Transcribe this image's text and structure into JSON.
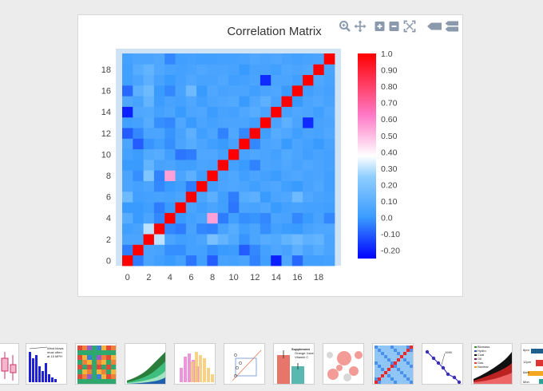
{
  "chart_data": {
    "type": "heatmap",
    "title": "Correlation Matrix",
    "x": [
      0,
      1,
      2,
      3,
      4,
      5,
      6,
      7,
      8,
      9,
      10,
      11,
      12,
      13,
      14,
      15,
      16,
      17,
      18,
      19
    ],
    "y": [
      0,
      1,
      2,
      3,
      4,
      5,
      6,
      7,
      8,
      9,
      10,
      11,
      12,
      13,
      14,
      15,
      16,
      17,
      18,
      19
    ],
    "x_ticks": [
      "0",
      "2",
      "4",
      "6",
      "8",
      "10",
      "12",
      "14",
      "16",
      "18"
    ],
    "y_ticks": [
      "0",
      "2",
      "4",
      "6",
      "8",
      "10",
      "12",
      "14",
      "16",
      "18"
    ],
    "colorbar": {
      "range": [
        -0.25,
        1.0
      ],
      "ticks": [
        "1.0",
        "0.90",
        "0.80",
        "0.70",
        "0.60",
        "0.50",
        "0.40",
        "0.30",
        "0.20",
        "0.10",
        "0.0",
        "-0.10",
        "-0.20"
      ],
      "tick_values": [
        1.0,
        0.9,
        0.8,
        0.7,
        0.6,
        0.5,
        0.4,
        0.3,
        0.2,
        0.1,
        0.0,
        -0.1,
        -0.2
      ],
      "colorscale": [
        [
          0,
          "#0000ff"
        ],
        [
          0.2,
          "#3a9bff"
        ],
        [
          0.4,
          "#90cfff"
        ],
        [
          0.5,
          "#ffffff"
        ],
        [
          0.7,
          "#ff79c6"
        ],
        [
          1,
          "#ff0000"
        ]
      ]
    },
    "z": [
      [
        1.0,
        -0.05,
        0.05,
        0.02,
        0.0,
        0.03,
        -0.06,
        0.02,
        -0.1,
        0.04,
        0.03,
        0.05,
        -0.04,
        0.02,
        -0.2,
        0.06,
        -0.08,
        0.02,
        0.02,
        0.03
      ],
      [
        -0.05,
        1.0,
        0.05,
        0.04,
        -0.02,
        -0.02,
        0.03,
        0.03,
        -0.02,
        0.0,
        0.01,
        -0.1,
        -0.03,
        0.03,
        0.06,
        0.04,
        0.1,
        0.05,
        0.08,
        0.05
      ],
      [
        0.05,
        0.05,
        1.0,
        0.3,
        0.05,
        0.02,
        0.03,
        0.05,
        0.18,
        0.12,
        0.07,
        -0.01,
        0.05,
        0.08,
        0.07,
        0.12,
        0.15,
        0.1,
        0.12,
        0.05
      ],
      [
        0.02,
        0.04,
        0.3,
        1.0,
        -0.03,
        -0.05,
        0.04,
        -0.03,
        -0.04,
        0.04,
        0.08,
        0.02,
        0.05,
        -0.02,
        0.03,
        0.01,
        0.0,
        0.04,
        0.06,
        0.06
      ],
      [
        0.08,
        0.0,
        0.05,
        -0.03,
        1.0,
        0.0,
        0.03,
        0.05,
        0.55,
        -0.05,
        0.02,
        -0.02,
        -0.01,
        -0.03,
        0.05,
        0.04,
        -0.03,
        0.0,
        0.04,
        -0.03
      ],
      [
        0.0,
        0.0,
        0.02,
        -0.05,
        0.0,
        1.0,
        0.05,
        0.02,
        0.05,
        0.02,
        -0.06,
        0.05,
        0.04,
        0.06,
        0.0,
        0.03,
        0.04,
        0.03,
        0.03,
        0.02
      ],
      [
        0.15,
        0.02,
        0.03,
        0.04,
        0.03,
        0.05,
        1.0,
        0.05,
        0.1,
        0.02,
        -0.05,
        0.08,
        0.1,
        0.0,
        0.05,
        0.06,
        0.15,
        0.06,
        0.04,
        0.03
      ],
      [
        0.05,
        0.03,
        0.05,
        -0.03,
        0.0,
        0.02,
        -0.05,
        1.0,
        0.02,
        0.05,
        0.06,
        0.05,
        0.02,
        0.05,
        0.06,
        0.02,
        0.0,
        0.04,
        0.06,
        0.02
      ],
      [
        0.05,
        -0.02,
        0.2,
        -0.04,
        0.55,
        0.05,
        0.1,
        0.02,
        1.0,
        0.04,
        0.06,
        0.02,
        0.05,
        0.03,
        0.01,
        0.05,
        0.06,
        0.04,
        0.05,
        0.02
      ],
      [
        0.0,
        0.0,
        0.12,
        0.04,
        0.05,
        0.02,
        0.02,
        0.05,
        0.04,
        1.0,
        0.03,
        0.0,
        -0.04,
        0.05,
        0.04,
        0.06,
        0.04,
        0.06,
        0.05,
        0.03
      ],
      [
        0.03,
        0.01,
        0.07,
        0.08,
        0.02,
        -0.06,
        -0.05,
        0.06,
        0.06,
        0.03,
        1.0,
        0.04,
        0.06,
        0.05,
        0.03,
        0.07,
        0.05,
        0.02,
        0.04,
        0.03
      ],
      [
        0.05,
        -0.1,
        -0.01,
        0.02,
        -0.02,
        0.05,
        0.08,
        0.05,
        0.02,
        0.0,
        0.04,
        1.0,
        -0.03,
        0.05,
        0.06,
        0.0,
        0.05,
        0.03,
        0.0,
        0.04
      ],
      [
        -0.1,
        -0.03,
        0.05,
        0.05,
        -0.01,
        0.04,
        0.1,
        0.02,
        0.05,
        -0.04,
        0.06,
        -0.03,
        1.0,
        0.02,
        0.08,
        0.06,
        0.02,
        0.05,
        0.04,
        0.06
      ],
      [
        0.02,
        0.03,
        0.08,
        -0.02,
        -0.03,
        0.06,
        0.0,
        0.05,
        0.03,
        0.05,
        0.05,
        0.05,
        0.02,
        1.0,
        0.05,
        0.1,
        0.05,
        -0.18,
        0.04,
        0.05
      ],
      [
        -0.2,
        0.06,
        0.07,
        0.03,
        0.05,
        0.0,
        0.05,
        0.06,
        0.01,
        0.04,
        0.03,
        0.06,
        0.08,
        0.05,
        1.0,
        0.04,
        0.06,
        0.05,
        0.02,
        0.06
      ],
      [
        0.06,
        0.04,
        0.12,
        0.01,
        0.04,
        0.03,
        0.06,
        0.02,
        0.05,
        0.06,
        0.07,
        0.0,
        0.06,
        0.1,
        0.04,
        1.0,
        0.0,
        0.05,
        0.06,
        0.04
      ],
      [
        -0.08,
        0.1,
        0.15,
        0.0,
        -0.03,
        0.04,
        0.15,
        0.0,
        0.06,
        0.04,
        0.05,
        0.05,
        0.02,
        0.05,
        0.06,
        0.0,
        1.0,
        0.02,
        0.05,
        0.03
      ],
      [
        0.02,
        0.05,
        0.1,
        0.04,
        0.0,
        0.03,
        0.06,
        0.04,
        0.04,
        0.06,
        0.02,
        0.03,
        0.05,
        -0.18,
        0.05,
        0.05,
        0.02,
        1.0,
        0.06,
        0.04
      ],
      [
        0.02,
        0.08,
        0.12,
        0.06,
        0.04,
        0.03,
        0.04,
        0.06,
        0.05,
        0.05,
        0.04,
        0.0,
        0.04,
        0.04,
        0.02,
        0.06,
        0.05,
        0.06,
        1.0,
        0.05
      ],
      [
        0.03,
        0.05,
        0.05,
        0.06,
        -0.03,
        0.02,
        0.03,
        0.02,
        0.02,
        0.03,
        0.03,
        0.04,
        0.06,
        0.05,
        0.06,
        0.04,
        0.03,
        0.04,
        0.05,
        1.0
      ]
    ]
  },
  "modebar": {
    "buttons": [
      {
        "name": "zoom-icon"
      },
      {
        "name": "pan-icon"
      },
      {
        "name": "zoom-in-icon"
      },
      {
        "name": "zoom-out-icon"
      },
      {
        "name": "autoscale-icon"
      },
      {
        "name": "hover-closest-icon"
      },
      {
        "name": "hover-compare-icon"
      }
    ]
  },
  "thumbnails": {
    "items": [
      {
        "name": "box-plot"
      },
      {
        "name": "bar-chart-annotation",
        "annotation": [
          "Wind blows",
          "most often",
          "at 15 MPH"
        ]
      },
      {
        "name": "colored-grid"
      },
      {
        "name": "stacked-area"
      },
      {
        "name": "histogram"
      },
      {
        "name": "scatter-box"
      },
      {
        "name": "error-bars",
        "legend_title": "Supplement",
        "legend": [
          "Orange Juice",
          "Vitamin C"
        ]
      },
      {
        "name": "bubble-chart"
      },
      {
        "name": "correlation-heatmap"
      },
      {
        "name": "line-markers",
        "annotation": "1990"
      },
      {
        "name": "energy-stacked",
        "legend": [
          "Biomass",
          "Hydro",
          "Coal",
          "Oil",
          "Gas",
          "Nuclear"
        ]
      },
      {
        "name": "timeline",
        "labels": [
          "6pm",
          "12pm",
          "6am",
          "Mon"
        ]
      }
    ]
  }
}
